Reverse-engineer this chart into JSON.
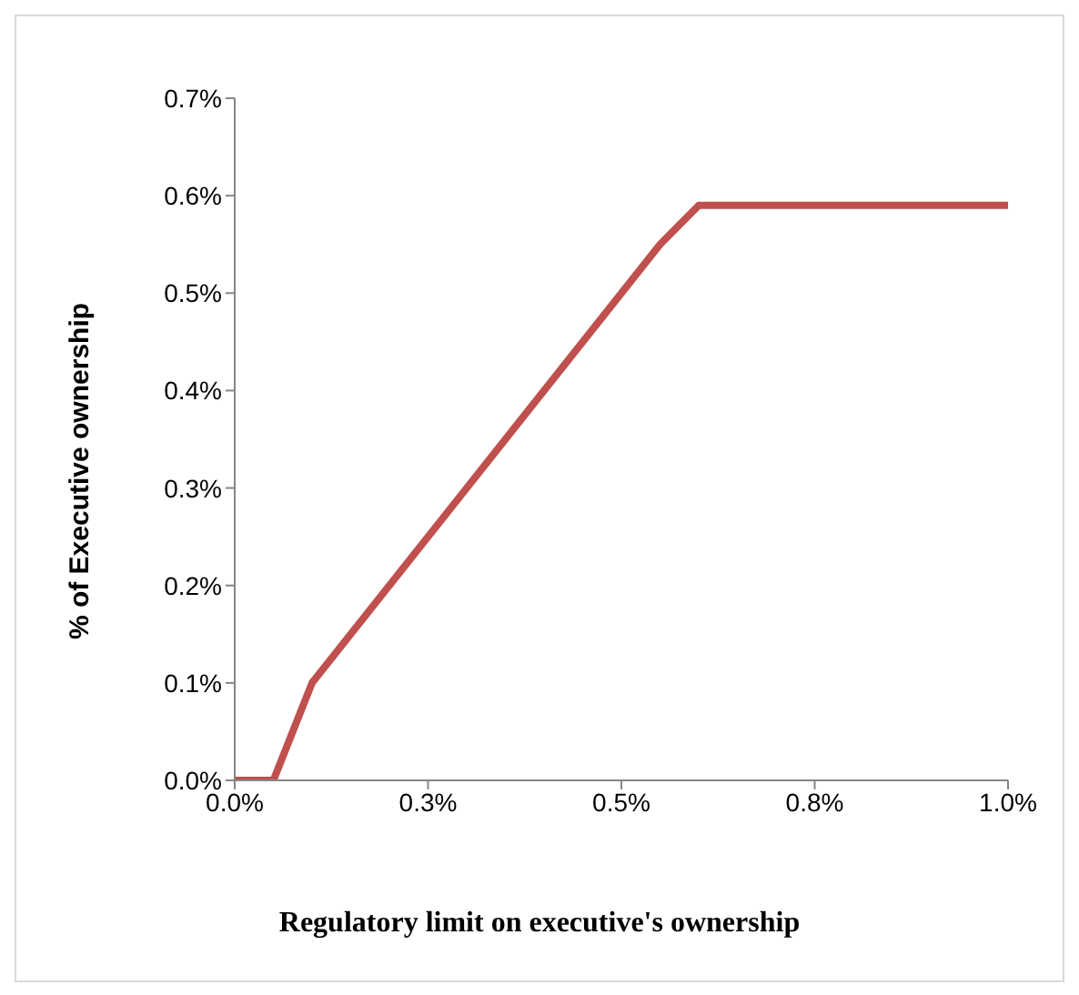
{
  "chart_data": {
    "type": "line",
    "xlabel": "Regulatory limit on executive's ownership",
    "ylabel": "% of Executive ownership",
    "x": [
      0,
      0.05,
      0.1,
      0.55,
      0.6,
      1.0
    ],
    "series": [
      {
        "color": "#c0504d",
        "values": [
          0,
          0,
          0.1,
          0.55,
          0.59,
          0.59
        ]
      }
    ],
    "xlim": [
      0,
      1.0
    ],
    "xticks": [
      {
        "value": 0,
        "label": "0.0%"
      },
      {
        "value": 0.25,
        "label": "0.3%"
      },
      {
        "value": 0.5,
        "label": "0.5%"
      },
      {
        "value": 0.75,
        "label": "0.8%"
      },
      {
        "value": 1.0,
        "label": "1.0%"
      }
    ],
    "ylim": [
      0,
      0.7
    ],
    "yticks": [
      {
        "value": 0,
        "label": "0.0%"
      },
      {
        "value": 0.1,
        "label": "0.1%"
      },
      {
        "value": 0.2,
        "label": "0.2%"
      },
      {
        "value": 0.3,
        "label": "0.3%"
      },
      {
        "value": 0.4,
        "label": "0.4%"
      },
      {
        "value": 0.5,
        "label": "0.5%"
      },
      {
        "value": 0.6,
        "label": "0.6%"
      },
      {
        "value": 0.7,
        "label": "0.7%"
      }
    ],
    "grid": false,
    "legend": false,
    "marker": "none",
    "line_style": "solid"
  }
}
